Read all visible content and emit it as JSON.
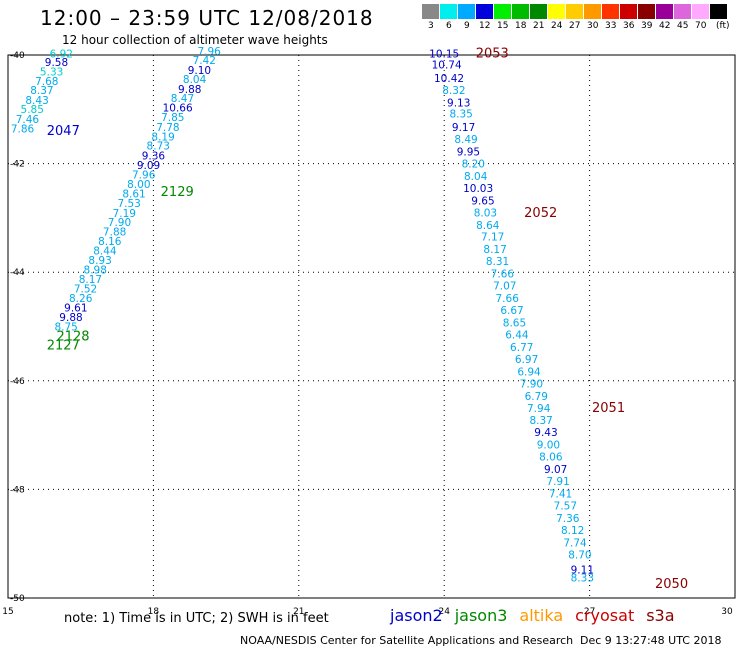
{
  "header": {
    "title": "12:00 – 23:59 UTC 12/08/2018",
    "subtitle": "12 hour collection of altimeter wave heights"
  },
  "scale": {
    "unit": "(ft)",
    "steps": [
      {
        "label": "3",
        "color": "#888888"
      },
      {
        "label": "6",
        "color": "#00eeee"
      },
      {
        "label": "9",
        "color": "#00aaff"
      },
      {
        "label": "12",
        "color": "#0000dd"
      },
      {
        "label": "15",
        "color": "#00ee00"
      },
      {
        "label": "18",
        "color": "#00bb00"
      },
      {
        "label": "21",
        "color": "#008800"
      },
      {
        "label": "24",
        "color": "#ffff00"
      },
      {
        "label": "27",
        "color": "#ffcc00"
      },
      {
        "label": "30",
        "color": "#ff9900"
      },
      {
        "label": "33",
        "color": "#ff3300"
      },
      {
        "label": "36",
        "color": "#cc0000"
      },
      {
        "label": "39",
        "color": "#880000"
      },
      {
        "label": "42",
        "color": "#990099"
      },
      {
        "label": "45",
        "color": "#dd66dd"
      },
      {
        "label": "70",
        "color": "#ffaaff"
      },
      {
        "label": "",
        "color": "#000000"
      }
    ]
  },
  "axes": {
    "lon_ticks": [
      "15",
      "18",
      "21",
      "24",
      "27",
      "30"
    ],
    "lat_ticks": [
      "-40",
      "-42",
      "-44",
      "-46",
      "-48",
      "-50"
    ],
    "lon_range": [
      15,
      30
    ],
    "lat_range": [
      -40,
      -50
    ]
  },
  "colors": {
    "jason2": "#0000cc",
    "jason3": "#008800",
    "altika": "#ff9900",
    "cryosat": "#cc0000",
    "s3a": "#880000",
    "light": "#00aaee",
    "cyan": "#00cccc"
  },
  "passes": [
    {
      "time": "2047",
      "color": "jason2",
      "lon": 15.8,
      "lat": -41.47
    },
    {
      "time": "2128",
      "color": "jason3",
      "lon": 16.0,
      "lat": -45.26
    },
    {
      "time": "2127",
      "color": "jason3",
      "lon": 15.8,
      "lat": -45.42
    },
    {
      "time": "2129",
      "color": "jason3",
      "lon": 18.15,
      "lat": -42.6
    },
    {
      "time": "2053",
      "color": "s3a",
      "lon": 24.65,
      "lat": -40.05
    },
    {
      "time": "2052",
      "color": "s3a",
      "lon": 25.65,
      "lat": -42.98
    },
    {
      "time": "2051",
      "color": "s3a",
      "lon": 27.05,
      "lat": -46.57
    },
    {
      "time": "2050",
      "color": "s3a",
      "lon": 28.35,
      "lat": -49.82
    }
  ],
  "chart_data": {
    "type": "scatter",
    "title": "12 hour collection of altimeter wave heights",
    "unit": "ft",
    "tracks": [
      {
        "name": "track-a",
        "points": [
          {
            "lon": 16.1,
            "lat": -40.05,
            "v": "6.92",
            "c": "cyan"
          },
          {
            "lon": 16.0,
            "lat": -40.2,
            "v": "9.58",
            "c": "jason2"
          },
          {
            "lon": 15.9,
            "lat": -40.38,
            "v": "5.33",
            "c": "cyan"
          },
          {
            "lon": 15.8,
            "lat": -40.55,
            "v": "7.68",
            "c": "light"
          },
          {
            "lon": 15.7,
            "lat": -40.72,
            "v": "8.37",
            "c": "light"
          },
          {
            "lon": 15.6,
            "lat": -40.9,
            "v": "8.43",
            "c": "light"
          },
          {
            "lon": 15.5,
            "lat": -41.07,
            "v": "5.85",
            "c": "cyan"
          },
          {
            "lon": 15.4,
            "lat": -41.25,
            "v": "7.46",
            "c": "light"
          },
          {
            "lon": 15.3,
            "lat": -41.43,
            "v": "7.86",
            "c": "light"
          }
        ]
      },
      {
        "name": "track-b",
        "points": [
          {
            "lon": 19.15,
            "lat": -40.0,
            "v": "7.96",
            "c": "light"
          },
          {
            "lon": 19.05,
            "lat": -40.17,
            "v": "7.42",
            "c": "light"
          },
          {
            "lon": 18.95,
            "lat": -40.35,
            "v": "9.10",
            "c": "jason2"
          },
          {
            "lon": 18.85,
            "lat": -40.52,
            "v": "8.04",
            "c": "light"
          },
          {
            "lon": 18.75,
            "lat": -40.7,
            "v": "9.88",
            "c": "jason2"
          },
          {
            "lon": 18.6,
            "lat": -40.87,
            "v": "8.47",
            "c": "light"
          },
          {
            "lon": 18.5,
            "lat": -41.04,
            "v": "10.66",
            "c": "jason2"
          },
          {
            "lon": 18.4,
            "lat": -41.22,
            "v": "7.85",
            "c": "light"
          },
          {
            "lon": 18.3,
            "lat": -41.4,
            "v": "7.78",
            "c": "light"
          },
          {
            "lon": 18.2,
            "lat": -41.57,
            "v": "8.19",
            "c": "light"
          },
          {
            "lon": 18.1,
            "lat": -41.74,
            "v": "8.73",
            "c": "light"
          },
          {
            "lon": 18.0,
            "lat": -41.92,
            "v": "9.36",
            "c": "jason2"
          },
          {
            "lon": 17.9,
            "lat": -42.1,
            "v": "9.09",
            "c": "jason2"
          },
          {
            "lon": 17.8,
            "lat": -42.27,
            "v": "7.96",
            "c": "light"
          },
          {
            "lon": 17.7,
            "lat": -42.45,
            "v": "8.00",
            "c": "light"
          },
          {
            "lon": 17.6,
            "lat": -42.62,
            "v": "8.61",
            "c": "light"
          },
          {
            "lon": 17.5,
            "lat": -42.8,
            "v": "7.53",
            "c": "light"
          },
          {
            "lon": 17.4,
            "lat": -42.98,
            "v": "7.19",
            "c": "light"
          },
          {
            "lon": 17.3,
            "lat": -43.15,
            "v": "7.90",
            "c": "light"
          },
          {
            "lon": 17.2,
            "lat": -43.32,
            "v": "7.88",
            "c": "light"
          },
          {
            "lon": 17.1,
            "lat": -43.5,
            "v": "8.16",
            "c": "light"
          },
          {
            "lon": 17.0,
            "lat": -43.67,
            "v": "8.44",
            "c": "light"
          },
          {
            "lon": 16.9,
            "lat": -43.85,
            "v": "8.93",
            "c": "light"
          },
          {
            "lon": 16.8,
            "lat": -44.02,
            "v": "8.98",
            "c": "light"
          },
          {
            "lon": 16.7,
            "lat": -44.2,
            "v": "8.17",
            "c": "light"
          },
          {
            "lon": 16.6,
            "lat": -44.37,
            "v": "7.52",
            "c": "light"
          },
          {
            "lon": 16.5,
            "lat": -44.55,
            "v": "8.26",
            "c": "light"
          },
          {
            "lon": 16.4,
            "lat": -44.72,
            "v": "9.61",
            "c": "jason2"
          },
          {
            "lon": 16.3,
            "lat": -44.9,
            "v": "9.88",
            "c": "jason2"
          },
          {
            "lon": 16.2,
            "lat": -45.07,
            "v": "8.75",
            "c": "light"
          }
        ]
      },
      {
        "name": "track-c",
        "points": [
          {
            "lon": 24.0,
            "lat": -40.05,
            "v": "10.15",
            "c": "jason2"
          },
          {
            "lon": 24.05,
            "lat": -40.25,
            "v": "10.74",
            "c": "jason2"
          },
          {
            "lon": 24.1,
            "lat": -40.5,
            "v": "10.42",
            "c": "jason2"
          },
          {
            "lon": 24.2,
            "lat": -40.72,
            "v": "8.32",
            "c": "light"
          },
          {
            "lon": 24.3,
            "lat": -40.95,
            "v": "9.13",
            "c": "jason2"
          },
          {
            "lon": 24.35,
            "lat": -41.15,
            "v": "8.35",
            "c": "light"
          },
          {
            "lon": 24.4,
            "lat": -41.4,
            "v": "9.17",
            "c": "jason2"
          },
          {
            "lon": 24.45,
            "lat": -41.62,
            "v": "8.49",
            "c": "light"
          },
          {
            "lon": 24.5,
            "lat": -41.85,
            "v": "9.95",
            "c": "jason2"
          },
          {
            "lon": 24.6,
            "lat": -42.07,
            "v": "8.20",
            "c": "light"
          },
          {
            "lon": 24.65,
            "lat": -42.3,
            "v": "8.04",
            "c": "light"
          },
          {
            "lon": 24.7,
            "lat": -42.52,
            "v": "10.03",
            "c": "jason2"
          },
          {
            "lon": 24.8,
            "lat": -42.75,
            "v": "9.65",
            "c": "jason2"
          },
          {
            "lon": 24.85,
            "lat": -42.97,
            "v": "8.03",
            "c": "light"
          },
          {
            "lon": 24.9,
            "lat": -43.2,
            "v": "8.64",
            "c": "light"
          },
          {
            "lon": 25.0,
            "lat": -43.42,
            "v": "7.17",
            "c": "light"
          },
          {
            "lon": 25.05,
            "lat": -43.65,
            "v": "8.17",
            "c": "light"
          },
          {
            "lon": 25.1,
            "lat": -43.87,
            "v": "8.31",
            "c": "light"
          },
          {
            "lon": 25.2,
            "lat": -44.1,
            "v": "7.66",
            "c": "light"
          },
          {
            "lon": 25.25,
            "lat": -44.32,
            "v": "7.07",
            "c": "light"
          },
          {
            "lon": 25.3,
            "lat": -44.55,
            "v": "7.66",
            "c": "light"
          },
          {
            "lon": 25.4,
            "lat": -44.77,
            "v": "6.67",
            "c": "light"
          },
          {
            "lon": 25.45,
            "lat": -45.0,
            "v": "8.65",
            "c": "light"
          },
          {
            "lon": 25.5,
            "lat": -45.22,
            "v": "6.44",
            "c": "light"
          },
          {
            "lon": 25.6,
            "lat": -45.45,
            "v": "6.77",
            "c": "light"
          },
          {
            "lon": 25.7,
            "lat": -45.67,
            "v": "6.97",
            "c": "light"
          },
          {
            "lon": 25.75,
            "lat": -45.9,
            "v": "6.94",
            "c": "light"
          },
          {
            "lon": 25.8,
            "lat": -46.12,
            "v": "7.90",
            "c": "light"
          },
          {
            "lon": 25.9,
            "lat": -46.35,
            "v": "6.79",
            "c": "light"
          },
          {
            "lon": 25.95,
            "lat": -46.57,
            "v": "7.94",
            "c": "light"
          },
          {
            "lon": 26.0,
            "lat": -46.8,
            "v": "8.37",
            "c": "light"
          },
          {
            "lon": 26.1,
            "lat": -47.02,
            "v": "9.43",
            "c": "jason2"
          },
          {
            "lon": 26.15,
            "lat": -47.25,
            "v": "9.00",
            "c": "light"
          },
          {
            "lon": 26.2,
            "lat": -47.47,
            "v": "8.06",
            "c": "light"
          },
          {
            "lon": 26.3,
            "lat": -47.7,
            "v": "9.07",
            "c": "jason2"
          },
          {
            "lon": 26.35,
            "lat": -47.92,
            "v": "7.91",
            "c": "light"
          },
          {
            "lon": 26.4,
            "lat": -48.15,
            "v": "7.41",
            "c": "light"
          },
          {
            "lon": 26.5,
            "lat": -48.37,
            "v": "7.57",
            "c": "light"
          },
          {
            "lon": 26.55,
            "lat": -48.6,
            "v": "7.36",
            "c": "light"
          },
          {
            "lon": 26.65,
            "lat": -48.82,
            "v": "8.12",
            "c": "light"
          },
          {
            "lon": 26.7,
            "lat": -49.05,
            "v": "7.74",
            "c": "light"
          },
          {
            "lon": 26.8,
            "lat": -49.27,
            "v": "8.70",
            "c": "light"
          },
          {
            "lon": 26.85,
            "lat": -49.55,
            "v": "9.11",
            "c": "jason2"
          },
          {
            "lon": 26.85,
            "lat": -49.7,
            "v": "8.33",
            "c": "light"
          }
        ]
      }
    ]
  },
  "footer": {
    "note": "note:  1) Time is in UTC;  2) SWH is in feet",
    "satellites": [
      {
        "label": "jason2",
        "color": "jason2"
      },
      {
        "label": "jason3",
        "color": "jason3"
      },
      {
        "label": "altika",
        "color": "altika"
      },
      {
        "label": "cryosat",
        "color": "cryosat"
      },
      {
        "label": "s3a",
        "color": "s3a"
      }
    ],
    "credit": "NOAA/NESDIS Center for Satellite Applications and Research",
    "stamp": "Dec  9 13:27:48 UTC 2018"
  }
}
